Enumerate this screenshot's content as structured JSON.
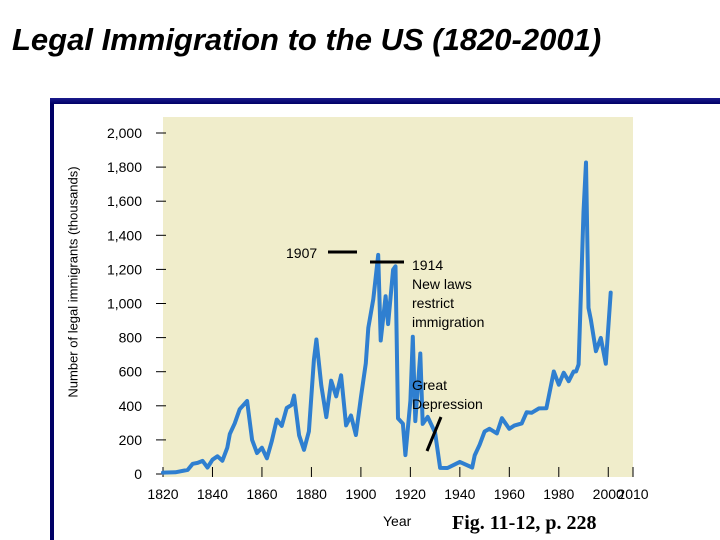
{
  "slide": {
    "title": "Legal Immigration to the US (1820-2001)",
    "figure_caption": "Fig. 11-12, p. 228"
  },
  "colors": {
    "plot_background": "#f0edcb",
    "series_line": "#2f7fd0",
    "accent_rule": "#000066"
  },
  "chart_data": {
    "type": "line",
    "title": "",
    "xlabel": "Year",
    "ylabel": "Number of legal immigrants (thousands)",
    "xlim": [
      1820,
      2010
    ],
    "ylim": [
      0,
      2000
    ],
    "x_ticks": [
      1820,
      1840,
      1860,
      1880,
      1900,
      1920,
      1940,
      1960,
      1980,
      2000,
      2010
    ],
    "y_ticks": [
      0,
      200,
      400,
      600,
      800,
      1000,
      1200,
      1400,
      1600,
      1800,
      2000
    ],
    "y_tick_labels": [
      "0",
      "200",
      "400",
      "600",
      "800",
      "1,000",
      "1,200",
      "1,400",
      "1,600",
      "1,800",
      "2,000"
    ],
    "grid": false,
    "legend": "none",
    "series": [
      {
        "x": [
          1820,
          1825,
          1830,
          1832,
          1834,
          1836,
          1838,
          1840,
          1842,
          1844,
          1846,
          1847,
          1849,
          1851,
          1854,
          1856,
          1858,
          1860,
          1862,
          1864,
          1866,
          1868,
          1870,
          1872,
          1873,
          1875,
          1877,
          1879,
          1881,
          1882,
          1884,
          1886,
          1888,
          1890,
          1892,
          1894,
          1896,
          1898,
          1900,
          1902,
          1903,
          1905,
          1907,
          1908,
          1910,
          1911,
          1913,
          1914,
          1915,
          1917,
          1918,
          1920,
          1921,
          1922,
          1924,
          1925,
          1927,
          1930,
          1932,
          1935,
          1940,
          1945,
          1946,
          1948,
          1950,
          1952,
          1955,
          1957,
          1960,
          1962,
          1965,
          1967,
          1969,
          1972,
          1975,
          1978,
          1980,
          1982,
          1984,
          1986,
          1987,
          1988,
          1989,
          1990,
          1991,
          1992,
          1993,
          1995,
          1997,
          1999,
          2001
        ],
        "y": [
          8,
          10,
          24,
          60,
          65,
          77,
          38,
          84,
          104,
          78,
          154,
          234,
          297,
          380,
          428,
          200,
          123,
          154,
          92,
          193,
          319,
          282,
          387,
          405,
          460,
          227,
          142,
          250,
          669,
          789,
          519,
          334,
          547,
          455,
          579,
          285,
          343,
          229,
          449,
          649,
          857,
          1026,
          1285,
          783,
          1042,
          879,
          1198,
          1218,
          326,
          295,
          111,
          430,
          805,
          310,
          707,
          294,
          335,
          242,
          36,
          35,
          71,
          38,
          109,
          171,
          249,
          265,
          238,
          327,
          265,
          284,
          297,
          362,
          359,
          385,
          386,
          601,
          524,
          594,
          544,
          601,
          601,
          643,
          1091,
          1536,
          1827,
          974,
          904,
          720,
          798,
          647,
          1064
        ]
      }
    ],
    "annotations": [
      {
        "label": "1907"
      },
      {
        "lines": [
          "1914",
          "New laws",
          "restrict",
          "immigration"
        ]
      },
      {
        "lines": [
          "Great",
          "Depression"
        ]
      }
    ]
  }
}
